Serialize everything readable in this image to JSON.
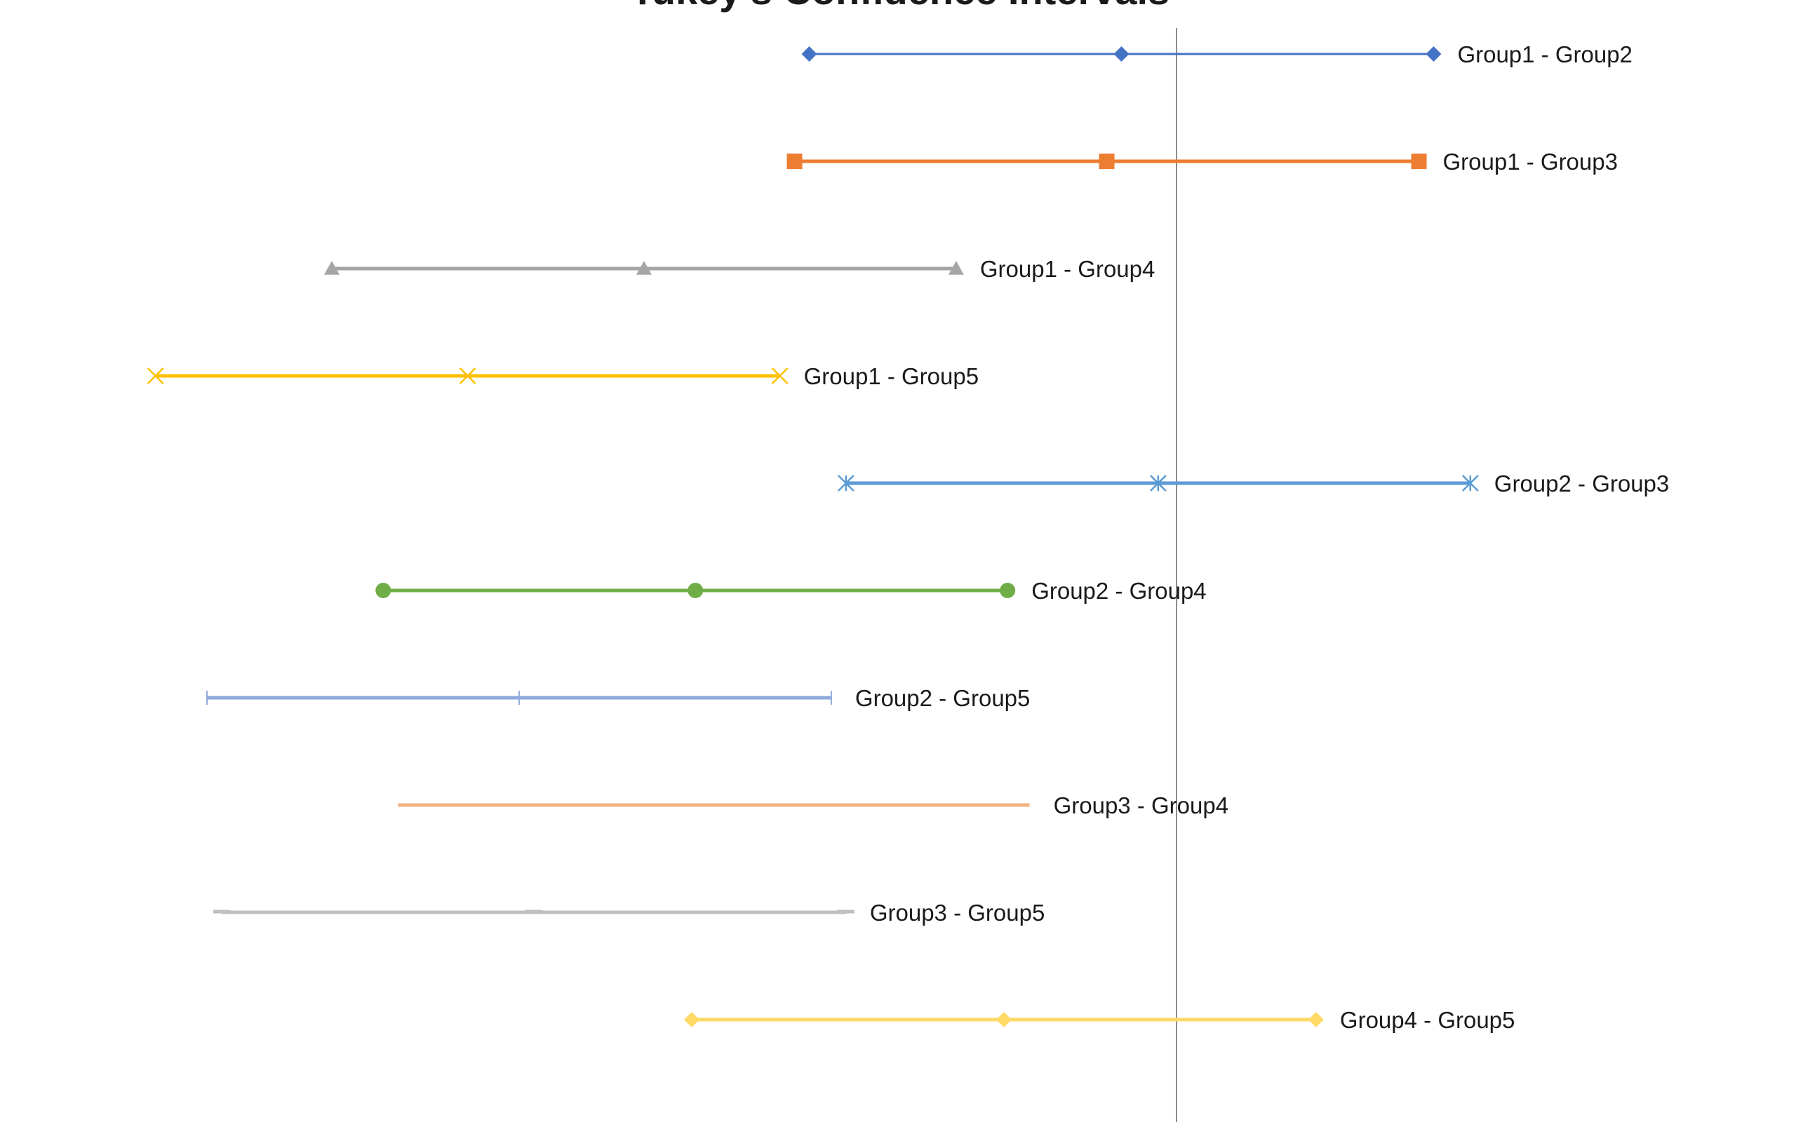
{
  "chart_data": {
    "type": "errorbar",
    "title": "Tukey's Confidence Intervals",
    "xlabel": "",
    "ylabel": "",
    "grid": false,
    "reference_line": 0,
    "series": [
      {
        "name": "Group1 - Group2",
        "lower": -5.0,
        "center": -0.75,
        "upper": 3.5,
        "color": "#4472C4",
        "marker": "diamond"
      },
      {
        "name": "Group1 - Group3",
        "lower": -5.2,
        "center": -0.95,
        "upper": 3.3,
        "color": "#ED7D31",
        "marker": "square"
      },
      {
        "name": "Group1 - Group4",
        "lower": -11.5,
        "center": -7.25,
        "upper": -3.0,
        "color": "#A5A5A5",
        "marker": "triangle"
      },
      {
        "name": "Group1 - Group5",
        "lower": -13.9,
        "center": -9.65,
        "upper": -5.4,
        "color": "#FFC000",
        "marker": "x"
      },
      {
        "name": "Group2 - Group3",
        "lower": -4.5,
        "center": -0.25,
        "upper": 4.0,
        "color": "#5B9BD5",
        "marker": "star"
      },
      {
        "name": "Group2 - Group4",
        "lower": -10.8,
        "center": -6.55,
        "upper": -2.3,
        "color": "#70AD47",
        "marker": "circle"
      },
      {
        "name": "Group2 - Group5",
        "lower": -13.2,
        "center": -8.95,
        "upper": -4.7,
        "color": "#8FAADC",
        "marker": "plus"
      },
      {
        "name": "Group3 - Group4",
        "lower": -10.6,
        "center": -6.3,
        "upper": -2.0,
        "color": "#F4B183",
        "marker": "none"
      },
      {
        "name": "Group3 - Group5",
        "lower": -13.0,
        "center": -8.75,
        "upper": -4.5,
        "color": "#BFBFBF",
        "marker": "dash"
      },
      {
        "name": "Group4 - Group5",
        "lower": -6.6,
        "center": -2.35,
        "upper": 1.9,
        "color": "#FFD966",
        "marker": "diamond"
      }
    ]
  }
}
